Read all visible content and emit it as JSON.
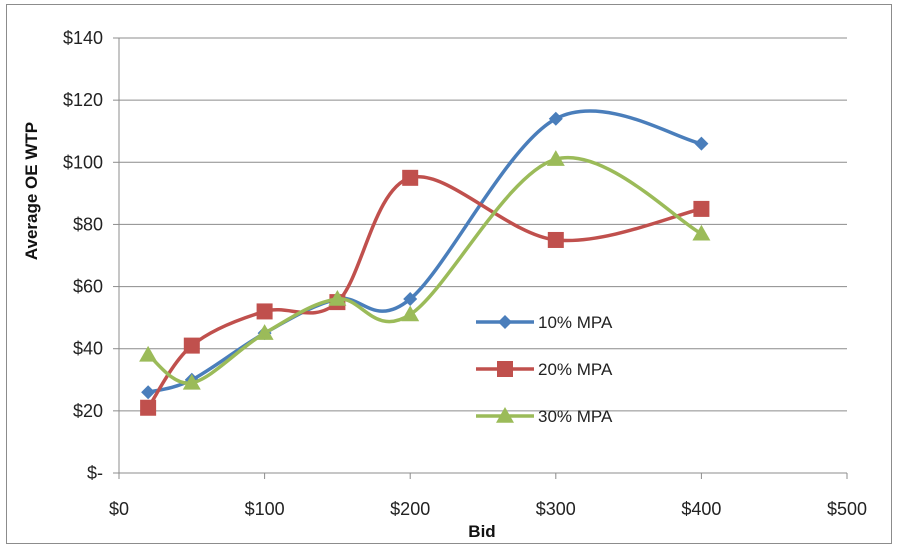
{
  "chart_data": {
    "type": "line",
    "xlabel": "Bid",
    "ylabel": "Average OE WTP",
    "xlim": [
      0,
      500
    ],
    "ylim": [
      0,
      140
    ],
    "x_ticks": [
      0,
      100,
      200,
      300,
      400,
      500
    ],
    "x_tick_labels": [
      "$0",
      "$100",
      "$200",
      "$300",
      "$400",
      "$500"
    ],
    "y_ticks": [
      0,
      20,
      40,
      60,
      80,
      100,
      120,
      140
    ],
    "y_tick_labels": [
      "$-",
      "$20",
      "$40",
      "$60",
      "$80",
      "$100",
      "$120",
      "$140"
    ],
    "grid": true,
    "legend_position": "inside-right",
    "series": [
      {
        "name": "10% MPA",
        "color": "#4a7ebb",
        "marker": "diamond",
        "x": [
          20,
          50,
          100,
          150,
          200,
          300,
          400
        ],
        "values": [
          26,
          30,
          45,
          56,
          56,
          114,
          106
        ]
      },
      {
        "name": "20% MPA",
        "color": "#c0504d",
        "marker": "square",
        "x": [
          20,
          50,
          100,
          150,
          200,
          300,
          400
        ],
        "values": [
          21,
          41,
          52,
          55,
          95,
          75,
          85
        ]
      },
      {
        "name": "30% MPA",
        "color": "#9bbb59",
        "marker": "triangle",
        "x": [
          20,
          50,
          100,
          150,
          200,
          300,
          400
        ],
        "values": [
          38,
          29,
          45,
          56,
          51,
          101,
          77
        ]
      }
    ]
  }
}
